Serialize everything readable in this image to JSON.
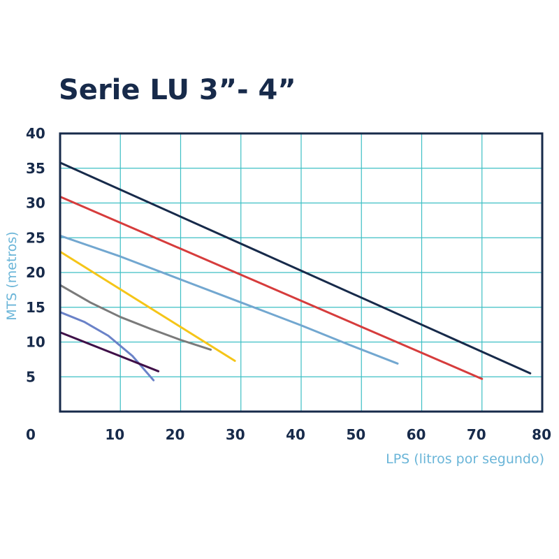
{
  "chart_data": {
    "type": "line",
    "title": "Serie LU 3”- 4”",
    "xlabel": "LPS (litros por segundo)",
    "ylabel": "MTS (metros)",
    "xlim": [
      0,
      80
    ],
    "ylim": [
      0,
      40
    ],
    "x_ticks": [
      "0",
      "10",
      "20",
      "30",
      "40",
      "50",
      "60",
      "70",
      "80"
    ],
    "y_ticks": [
      "5",
      "10",
      "15",
      "20",
      "25",
      "30",
      "35",
      "40"
    ],
    "grid": true,
    "legend": "none",
    "colors": {
      "title": "#172a4a",
      "tick": "#172a4a",
      "last_x_tick": "#3f1048",
      "axis_label": "#6ab5d8",
      "grid": "#3dbfc4",
      "frame": "#172a4a"
    },
    "series": [
      {
        "color": "#172a4a",
        "points": [
          [
            0,
            35.8
          ],
          [
            78,
            5.5
          ]
        ]
      },
      {
        "color": "#d63c3c",
        "points": [
          [
            0,
            30.9
          ],
          [
            70,
            4.7
          ]
        ]
      },
      {
        "color": "#72a7d0",
        "points": [
          [
            0,
            25.3
          ],
          [
            10,
            22.3
          ],
          [
            20,
            19.0
          ],
          [
            30,
            15.7
          ],
          [
            40,
            12.4
          ],
          [
            48,
            9.6
          ],
          [
            56,
            6.9
          ]
        ]
      },
      {
        "color": "#f5c518",
        "points": [
          [
            0,
            23.0
          ],
          [
            29,
            7.3
          ]
        ]
      },
      {
        "color": "#7a7a7a",
        "points": [
          [
            0,
            18.2
          ],
          [
            5,
            15.7
          ],
          [
            10,
            13.6
          ],
          [
            15,
            11.9
          ],
          [
            20,
            10.3
          ],
          [
            25,
            8.9
          ]
        ]
      },
      {
        "color": "#6a82c8",
        "points": [
          [
            0,
            14.3
          ],
          [
            4,
            12.9
          ],
          [
            8,
            10.9
          ],
          [
            12,
            8.0
          ],
          [
            15.5,
            4.5
          ]
        ]
      },
      {
        "color": "#3f1048",
        "points": [
          [
            0,
            11.4
          ],
          [
            16.3,
            5.8
          ]
        ]
      }
    ]
  }
}
